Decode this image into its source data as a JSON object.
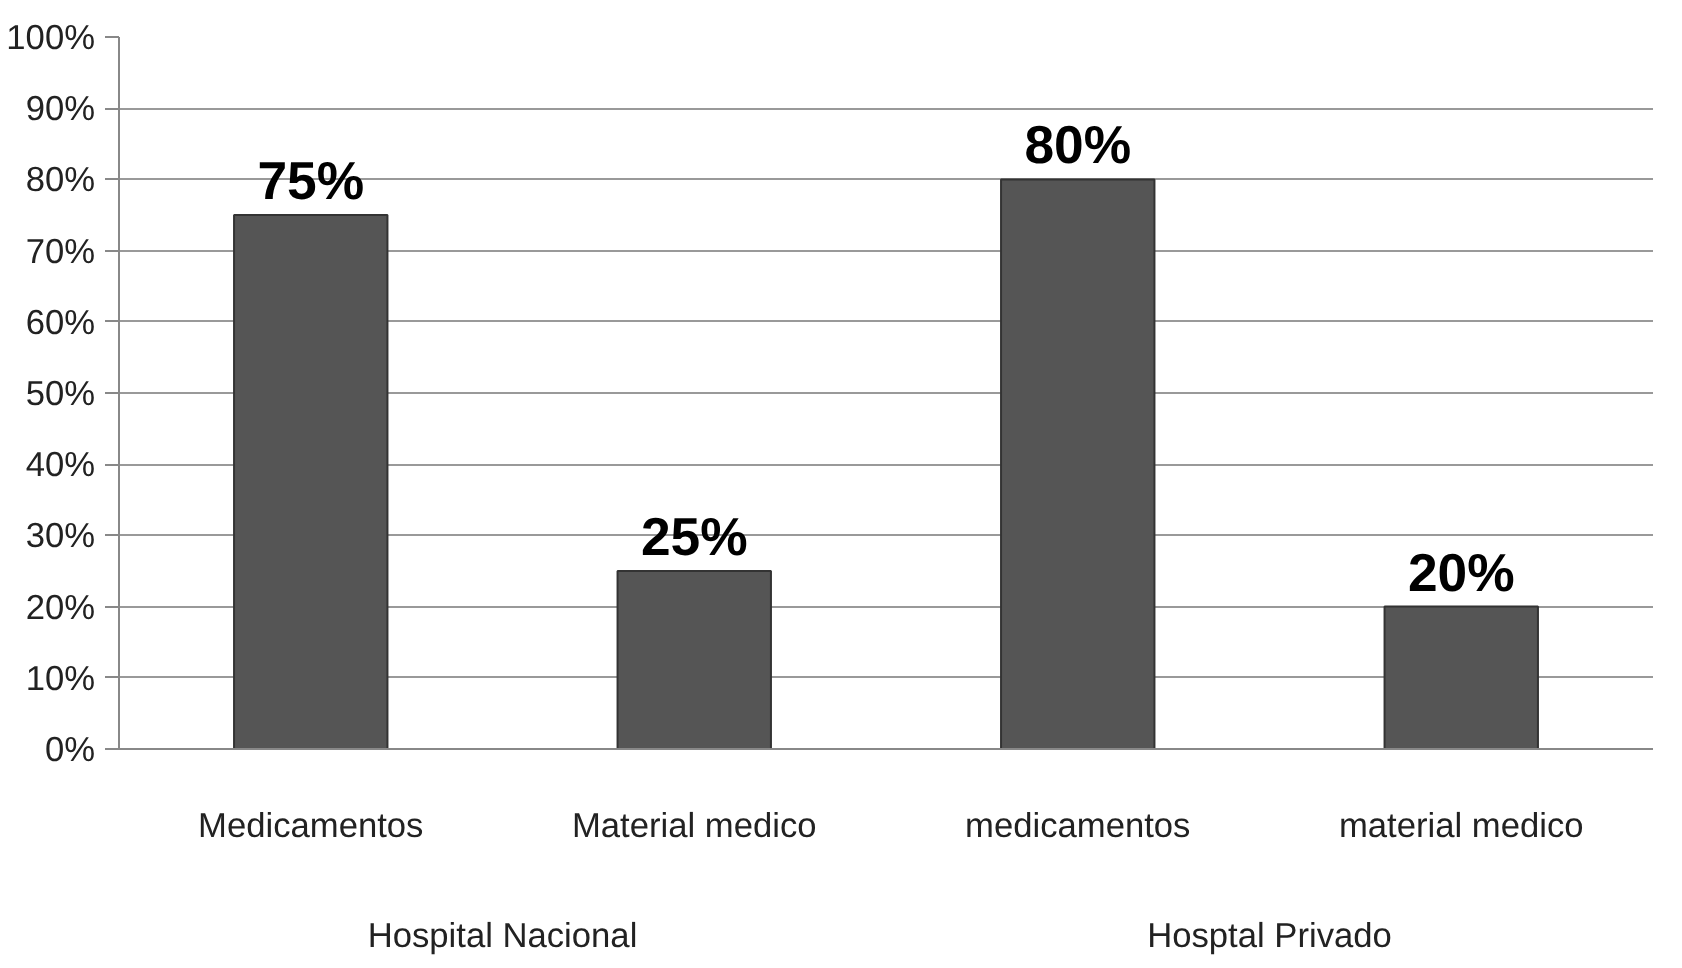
{
  "chart_data": {
    "type": "bar",
    "categories": [
      "Medicamentos",
      "Material medico",
      "medicamentos",
      "material medico"
    ],
    "values": [
      75,
      25,
      80,
      20
    ],
    "value_labels": [
      "75%",
      "25%",
      "80%",
      "20%"
    ],
    "color": "#555555",
    "ylim": [
      0,
      100
    ],
    "yticks": [
      {
        "value": 0,
        "label": "0%"
      },
      {
        "value": 10,
        "label": "10%"
      },
      {
        "value": 20,
        "label": "20%"
      },
      {
        "value": 30,
        "label": "30%"
      },
      {
        "value": 40,
        "label": "40%"
      },
      {
        "value": 50,
        "label": "50%"
      },
      {
        "value": 60,
        "label": "60%"
      },
      {
        "value": 70,
        "label": "70%"
      },
      {
        "value": 80,
        "label": "80%"
      },
      {
        "value": 90,
        "label": "90%"
      },
      {
        "value": 100,
        "label": "100%"
      }
    ],
    "grid": "y",
    "annotations": [
      "Hospital Nacional",
      "Hosptal Privado"
    ]
  }
}
